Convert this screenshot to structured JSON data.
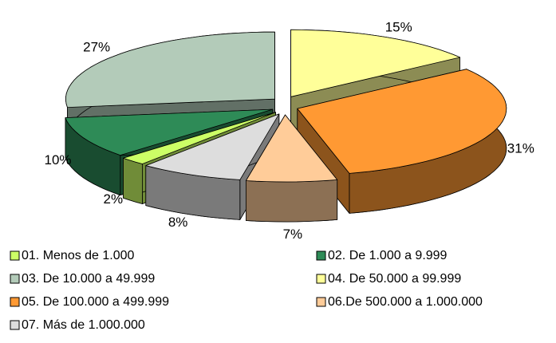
{
  "chart_data": {
    "type": "pie",
    "categories": [
      "01. Menos de 1.000",
      "02. De 1.000 a 9.999",
      "03. De 10.000 a 49.999",
      "04. De 50.000 a 99.999",
      "05. De 100.000 a 499.999",
      "06.De 500.000 a 1.000.000",
      "07. Más de 1.000.000"
    ],
    "values": [
      2,
      10,
      27,
      15,
      31,
      7,
      8
    ],
    "value_labels": [
      "2%",
      "10%",
      "27%",
      "15%",
      "31%",
      "7%",
      "8%"
    ],
    "colors": [
      "#ccff66",
      "#2e8b57",
      "#b3cbb9",
      "#ffff99",
      "#ff9933",
      "#ffcc99",
      "#dddddd"
    ],
    "legend": "bottom"
  }
}
